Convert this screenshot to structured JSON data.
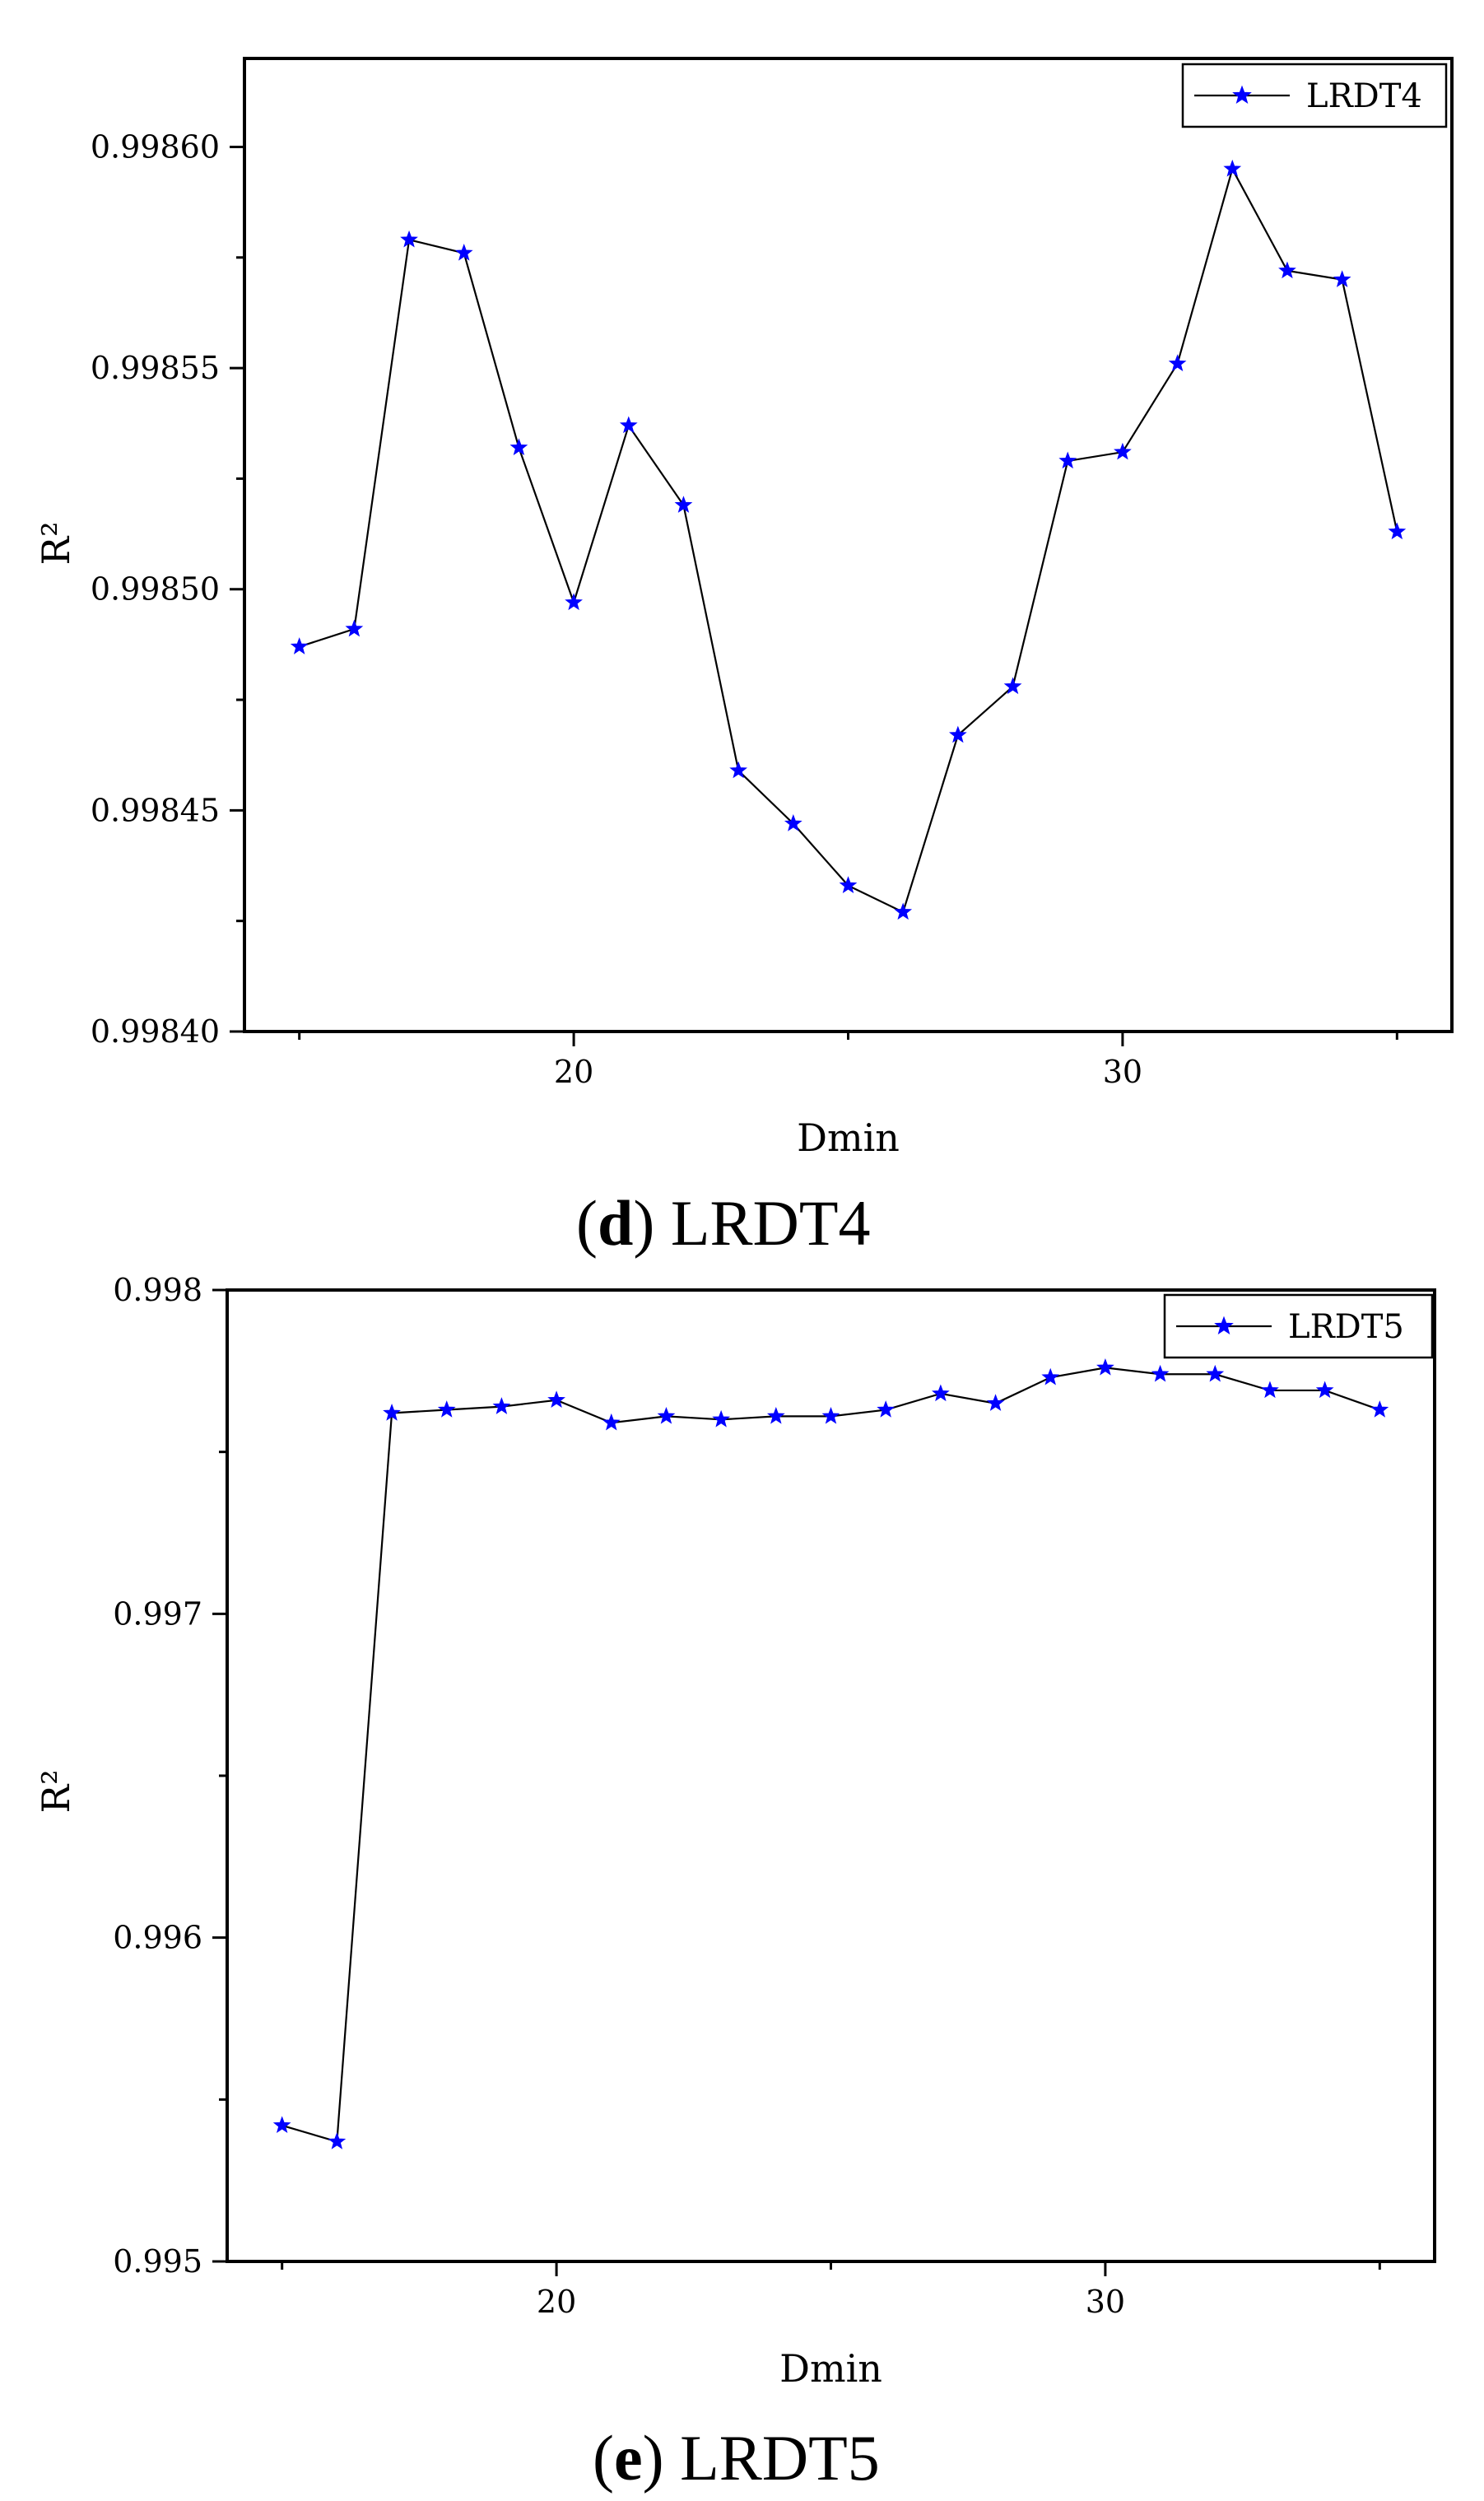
{
  "chart_data": [
    {
      "type": "line",
      "panel": "d",
      "caption_letter": "d",
      "caption_text": "LRDT4",
      "xlabel": "Dmin",
      "ylabel": "R²",
      "xlim": [
        14,
        36
      ],
      "ylim": [
        0.9984,
        0.99862
      ],
      "x_ticks": [
        20,
        30
      ],
      "y_ticks": [
        "0.99840",
        "0.99845",
        "0.99850",
        "0.99855",
        "0.99860"
      ],
      "y_tick_values": [
        0.9984,
        0.99845,
        0.9985,
        0.99855,
        0.9986
      ],
      "legend_position": "top-right",
      "marker": "star",
      "marker_color": "#0000ff",
      "line_color": "#000000",
      "series": [
        {
          "name": "LRDT4",
          "x": [
            15,
            16,
            17,
            18,
            19,
            20,
            21,
            22,
            23,
            24,
            25,
            26,
            27,
            28,
            29,
            30,
            31,
            32,
            33,
            34,
            35
          ],
          "y": [
            0.998487,
            0.998491,
            0.998579,
            0.998576,
            0.998532,
            0.998497,
            0.998537,
            0.998519,
            0.998459,
            0.998447,
            0.998433,
            0.998427,
            0.998467,
            0.998478,
            0.998529,
            0.998531,
            0.998551,
            0.998595,
            0.998572,
            0.99857,
            0.998513
          ]
        }
      ]
    },
    {
      "type": "line",
      "panel": "e",
      "caption_letter": "e",
      "caption_text": "LRDT5",
      "xlabel": "Dmin",
      "ylabel": "R²",
      "xlim": [
        14,
        36
      ],
      "ylim": [
        0.995,
        0.998
      ],
      "x_ticks": [
        20,
        30
      ],
      "y_ticks": [
        "0.995",
        "0.996",
        "0.997",
        "0.998"
      ],
      "y_tick_values": [
        0.995,
        0.996,
        0.997,
        0.998
      ],
      "legend_position": "top-right",
      "marker": "star",
      "marker_color": "#0000ff",
      "line_color": "#000000",
      "series": [
        {
          "name": "LRDT5",
          "x": [
            15,
            16,
            17,
            18,
            19,
            20,
            21,
            22,
            23,
            24,
            25,
            26,
            27,
            28,
            29,
            30,
            31,
            32,
            33,
            34,
            35
          ],
          "y": [
            0.99542,
            0.99537,
            0.99762,
            0.99763,
            0.99764,
            0.99766,
            0.99759,
            0.99761,
            0.9976,
            0.99761,
            0.99761,
            0.99763,
            0.99768,
            0.99765,
            0.99773,
            0.99776,
            0.99774,
            0.99774,
            0.99769,
            0.99769,
            0.99763
          ]
        }
      ]
    }
  ]
}
